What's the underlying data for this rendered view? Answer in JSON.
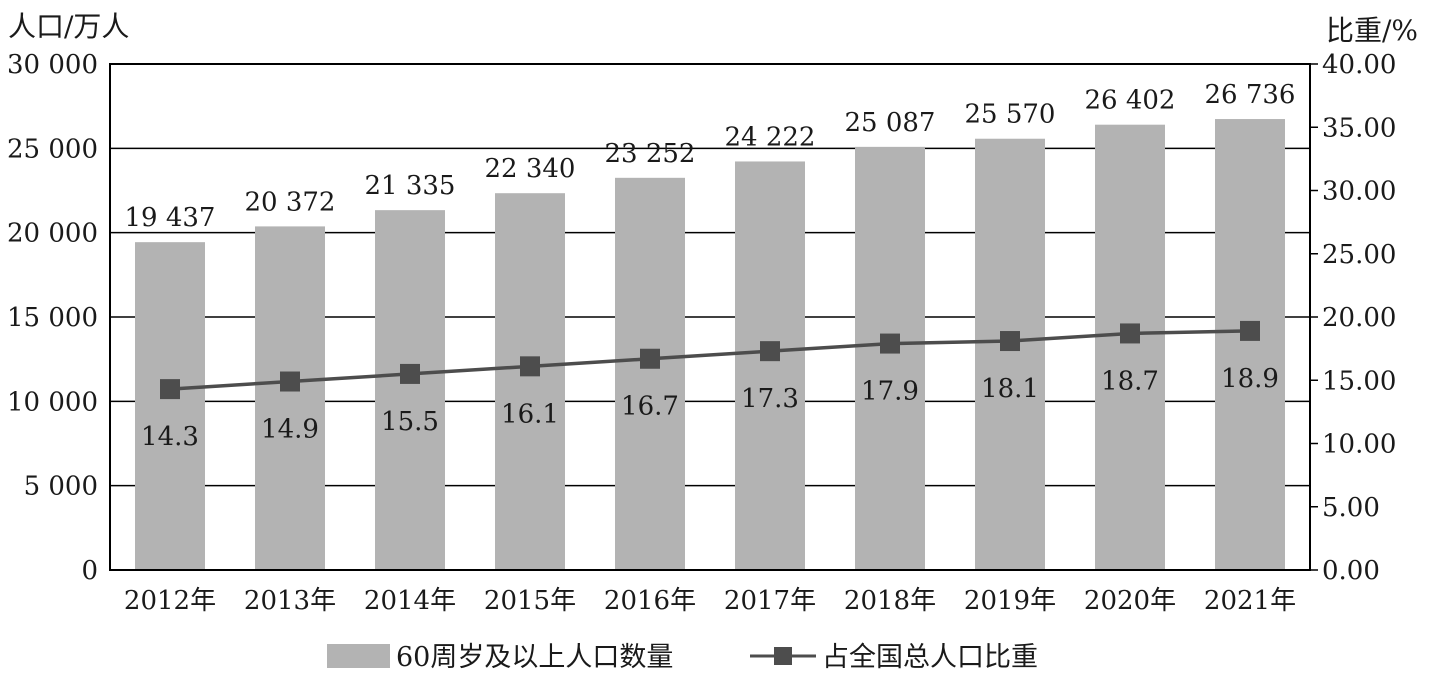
{
  "chart_data": {
    "type": "bar",
    "ylabel_left": "人口/万人",
    "ylabel_right": "比重/%",
    "categories": [
      "2012年",
      "2013年",
      "2014年",
      "2015年",
      "2016年",
      "2017年",
      "2018年",
      "2019年",
      "2020年",
      "2021年"
    ],
    "series": [
      {
        "name": "60周岁及以上人口数量",
        "type": "bar",
        "axis": "left",
        "values": [
          19437,
          20372,
          21335,
          22340,
          23252,
          24222,
          25087,
          25570,
          26402,
          26736
        ],
        "labels": [
          "19 437",
          "20 372",
          "21 335",
          "22 340",
          "23 252",
          "24 222",
          "25 087",
          "25 570",
          "26 402",
          "26 736"
        ],
        "color": "#b3b3b3"
      },
      {
        "name": "占全国总人口比重",
        "type": "line",
        "axis": "right",
        "marker": "square",
        "values": [
          14.3,
          14.9,
          15.5,
          16.1,
          16.7,
          17.3,
          17.9,
          18.1,
          18.7,
          18.9
        ],
        "labels": [
          "14.3",
          "14.9",
          "15.5",
          "16.1",
          "16.7",
          "17.3",
          "17.9",
          "18.1",
          "18.7",
          "18.9"
        ],
        "color": "#4d4d4d"
      }
    ],
    "ylim_left": [
      0,
      30000
    ],
    "ylim_right": [
      0,
      40
    ],
    "yticks_left": [
      "0",
      "5 000",
      "10 000",
      "15 000",
      "20 000",
      "25 000",
      "30 000"
    ],
    "yticks_right": [
      "0.00",
      "5.00",
      "10.00",
      "15.00",
      "20.00",
      "25.00",
      "30.00",
      "35.00",
      "40.00"
    ],
    "grid": true,
    "legend_position": "bottom"
  }
}
